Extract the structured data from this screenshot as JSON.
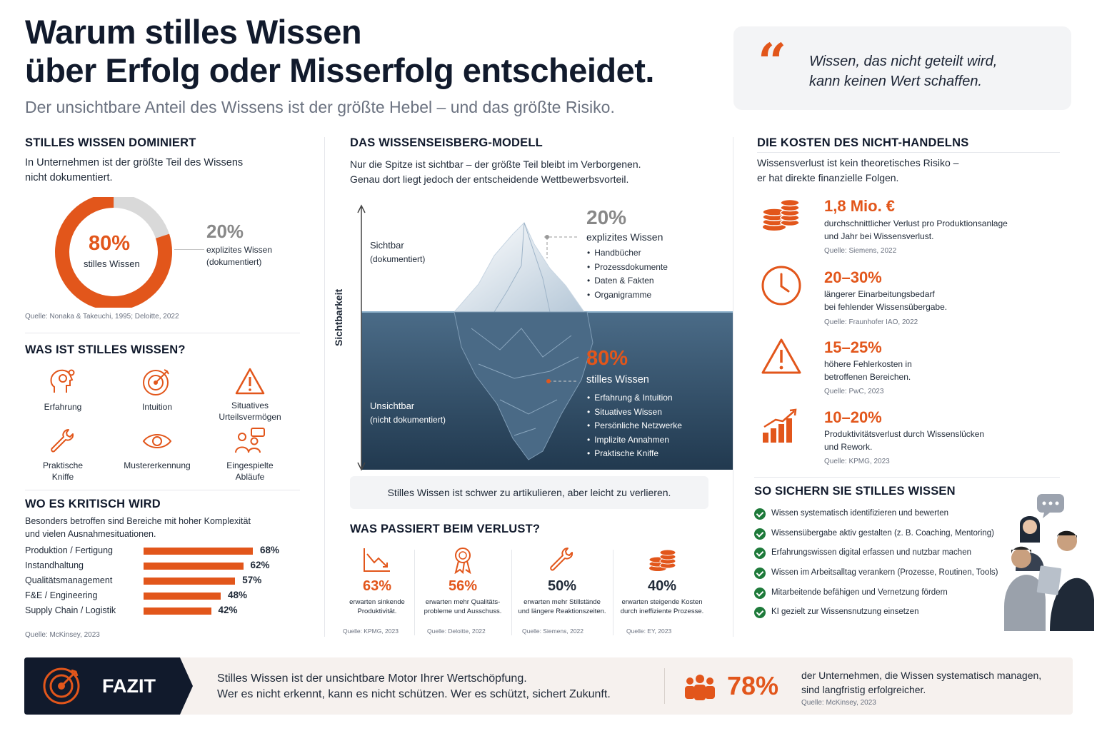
{
  "header": {
    "title_line1": "Warum stilles Wissen",
    "title_line2": "über Erfolg oder Misserfolg entscheidet.",
    "subtitle": "Der unsichtbare Anteil des Wissens ist der größte Hebel – und das größte Risiko.",
    "quote_line1": "Wissen, das nicht geteilt wird,",
    "quote_line2": "kann keinen Wert schaffen."
  },
  "dominiert": {
    "title": "STILLES WISSEN DOMINIERT",
    "text_line1": "In Unternehmen ist der größte Teil des Wissens",
    "text_line2": "nicht dokumentiert.",
    "tacit_value": "80%",
    "tacit_label": "stilles Wissen",
    "explicit_value": "20%",
    "explicit_label_line1": "explizites Wissen",
    "explicit_label_line2": "(dokumentiert)",
    "source": "Quelle: Nonaka & Takeuchi, 1995; Deloitte, 2022",
    "colors": {
      "tacit": "#e2561b",
      "explicit": "#d9d9d9"
    }
  },
  "chart_data": [
    {
      "type": "pie",
      "categories": [
        "stilles Wissen",
        "explizites Wissen"
      ],
      "values": [
        80,
        20
      ]
    },
    {
      "type": "bar",
      "title": "WO ES KRITISCH WIRD",
      "categories": [
        "Produktion / Fertigung",
        "Instandhaltung",
        "Qualitätsmanagement",
        "F&E / Engineering",
        "Supply Chain / Logistik"
      ],
      "values": [
        68,
        62,
        57,
        48,
        42
      ],
      "ylim": [
        0,
        100
      ]
    }
  ],
  "was_ist": {
    "title": "WAS IST STILLES WISSEN?",
    "items": [
      {
        "label1": "Erfahrung",
        "label2": "",
        "icon": "head-gear-icon"
      },
      {
        "label1": "Intuition",
        "label2": "",
        "icon": "target-icon"
      },
      {
        "label1": "Situatives",
        "label2": "Urteilsvermögen",
        "icon": "warning-icon"
      },
      {
        "label1": "Praktische",
        "label2": "Kniffe",
        "icon": "wrench-icon"
      },
      {
        "label1": "Mustererkennung",
        "label2": "",
        "icon": "eye-icon"
      },
      {
        "label1": "Eingespielte",
        "label2": "Abläufe",
        "icon": "team-icon"
      }
    ]
  },
  "kritisch": {
    "title": "WO ES KRITISCH WIRD",
    "text_line1": "Besonders betroffen sind Bereiche mit hoher Komplexität",
    "text_line2": "und vielen Ausnahmesituationen.",
    "rows": [
      {
        "label": "Produktion / Fertigung",
        "value": 68,
        "display": "68%"
      },
      {
        "label": "Instandhaltung",
        "value": 62,
        "display": "62%"
      },
      {
        "label": "Qualitätsmanagement",
        "value": 57,
        "display": "57%"
      },
      {
        "label": "F&E / Engineering",
        "value": 48,
        "display": "48%"
      },
      {
        "label": "Supply Chain / Logistik",
        "value": 42,
        "display": "42%"
      }
    ],
    "source": "Quelle: McKinsey, 2023"
  },
  "eisberg": {
    "title": "DAS WISSENSEISBERG-MODELL",
    "text_line1": "Nur die Spitze ist sichtbar – der größte Teil bleibt im Verborgenen.",
    "text_line2": "Genau dort liegt jedoch der entscheidende Wettbewerbsvorteil.",
    "axis_label": "Sichtbarkeit",
    "visible_label": "Sichtbar",
    "visible_sub": "(dokumentiert)",
    "invisible_label": "Unsichtbar",
    "invisible_sub": "(nicht dokumentiert)",
    "top_value": "20%",
    "top_label": "explizites Wissen",
    "top_items": [
      "Handbücher",
      "Prozessdokumente",
      "Daten & Fakten",
      "Organigramme"
    ],
    "bottom_value": "80%",
    "bottom_label": "stilles Wissen",
    "bottom_items": [
      "Erfahrung & Intuition",
      "Situatives Wissen",
      "Persönliche Netzwerke",
      "Implizite Annahmen",
      "Praktische Kniffe"
    ],
    "callout": "Stilles Wissen ist schwer zu artikulieren, aber leicht zu verlieren.",
    "colors": {
      "water": "#2c4a66",
      "accent": "#e2561b"
    }
  },
  "verlust": {
    "title": "WAS PASSIERT BEIM VERLUST?",
    "items": [
      {
        "value": "63%",
        "d1": "erwarten sinkende",
        "d2": "Produktivität.",
        "source": "Quelle: KPMG, 2023",
        "icon": "trend-down-icon",
        "accent": true
      },
      {
        "value": "56%",
        "d1": "erwarten mehr Qualitäts-",
        "d2": "probleme und Ausschuss.",
        "source": "Quelle: Deloitte, 2022",
        "icon": "award-icon",
        "accent": true
      },
      {
        "value": "50%",
        "d1": "erwarten mehr Stillstände",
        "d2": "und längere Reaktionszeiten.",
        "source": "Quelle: Siemens, 2022",
        "icon": "wrench-icon",
        "accent": false
      },
      {
        "value": "40%",
        "d1": "erwarten steigende Kosten",
        "d2": "durch ineffiziente Prozesse.",
        "source": "Quelle: EY, 2023",
        "icon": "coins-icon",
        "accent": false
      }
    ]
  },
  "kosten": {
    "title": "DIE KOSTEN DES NICHT-HANDELNS",
    "text_line1": "Wissensverlust ist kein theoretisches Risiko –",
    "text_line2": "er hat direkte finanzielle Folgen.",
    "items": [
      {
        "value": "1,8 Mio. €",
        "d1": "durchschnittlicher Verlust pro Produktionsanlage",
        "d2": "und Jahr bei Wissensverlust.",
        "source": "Quelle: Siemens, 2022",
        "icon": "coins-icon"
      },
      {
        "value": "20–30%",
        "d1": "längerer Einarbeitungsbedarf",
        "d2": "bei fehlender Wissensübergabe.",
        "source": "Quelle: Fraunhofer IAO, 2022",
        "icon": "clock-icon"
      },
      {
        "value": "15–25%",
        "d1": "höhere Fehlerkosten in",
        "d2": "betroffenen Bereichen.",
        "source": "Quelle: PwC, 2023",
        "icon": "warning-icon"
      },
      {
        "value": "10–20%",
        "d1": "Produktivitätsverlust durch Wissenslücken",
        "d2": "und Rework.",
        "source": "Quelle: KPMG, 2023",
        "icon": "bar-growth-icon"
      }
    ]
  },
  "sichern": {
    "title": "SO SICHERN SIE STILLES WISSEN",
    "items": [
      "Wissen systematisch identifizieren und bewerten",
      "Wissensübergabe aktiv gestalten (z. B. Coaching, Mentoring)",
      "Erfahrungswissen digital erfassen und nutzbar machen",
      "Wissen im Arbeitsalltag verankern (Prozesse, Routinen, Tools)",
      "Mitarbeitende befähigen und Vernetzung fördern",
      "KI gezielt zur Wissensnutzung einsetzen"
    ]
  },
  "fazit": {
    "label": "FAZIT",
    "line1": "Stilles Wissen ist der unsichtbare Motor Ihrer Wertschöpfung.",
    "line2": "Wer es nicht erkennt, kann es nicht schützen. Wer es schützt, sichert Zukunft.",
    "stat_value": "78%",
    "stat_line1": "der Unternehmen, die Wissen systematisch managen,",
    "stat_line2": "sind langfristig erfolgreicher.",
    "source": "Quelle: McKinsey, 2023",
    "colors": {
      "dark": "#111a2c",
      "band": "#f6f1ee"
    }
  }
}
